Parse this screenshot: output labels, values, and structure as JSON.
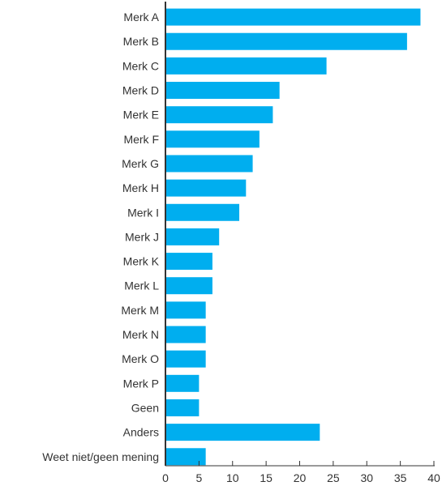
{
  "chart_data": {
    "type": "bar",
    "orientation": "horizontal",
    "categories": [
      "Merk A",
      "Merk B",
      "Merk C",
      "Merk D",
      "Merk E",
      "Merk F",
      "Merk G",
      "Merk H",
      "Merk I",
      "Merk J",
      "Merk K",
      "Merk L",
      "Merk M",
      "Merk N",
      "Merk O",
      "Merk P",
      "Geen",
      "Anders",
      "Weet niet/geen mening"
    ],
    "values": [
      38,
      36,
      24,
      17,
      16,
      14,
      13,
      12,
      11,
      8,
      7,
      7,
      6,
      6,
      6,
      5,
      5,
      23,
      6
    ],
    "xlim": [
      0,
      40
    ],
    "xticks": [
      "0",
      "5",
      "10",
      "15",
      "20",
      "25",
      "30",
      "35",
      "40"
    ],
    "grid": false,
    "colors": {
      "bar": "#00aeef",
      "axis": "#333333",
      "text": "#333333"
    }
  }
}
